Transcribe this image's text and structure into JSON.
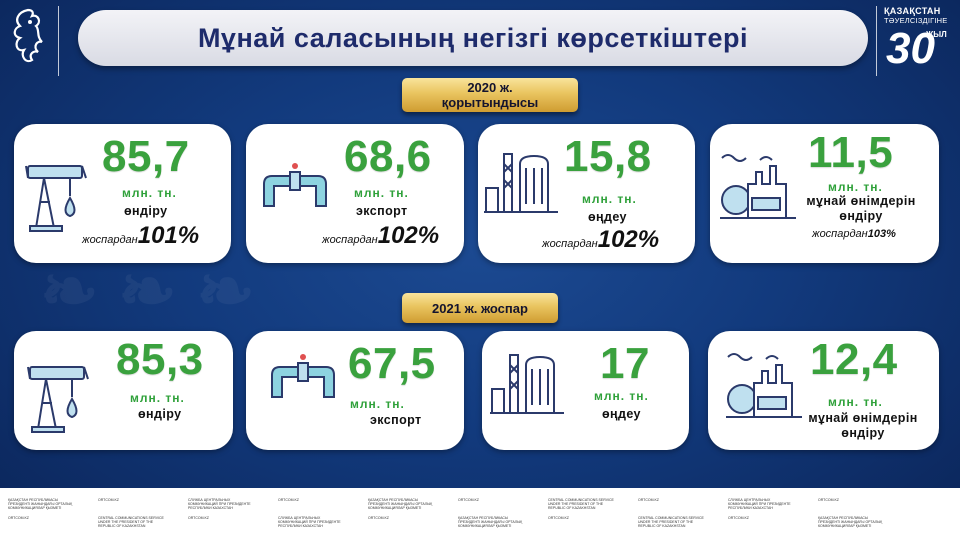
{
  "header": {
    "title": "Мұнай саласының негізгі көрсеткіштері",
    "logo_30": {
      "line1": "ҚАЗАҚСТАН",
      "line2": "ТӘУЕЛСІЗДІГІНЕ",
      "number": "30",
      "word": "ЖЫЛ"
    }
  },
  "sections": [
    {
      "label_line1": "2020 ж.",
      "label_line2": "қорытындысы",
      "cards": [
        {
          "icon": "oil-pump-icon",
          "value": "85,7",
          "unit": "млн. тн.",
          "label": "өндіру",
          "plan_prefix": "жоспардан",
          "plan_percent": "101%"
        },
        {
          "icon": "pipeline-icon",
          "value": "68,6",
          "unit": "млн. тн.",
          "label": "экспорт",
          "plan_prefix": "жоспардан",
          "plan_percent": "102%"
        },
        {
          "icon": "refinery-icon",
          "value": "15,8",
          "unit": "млн. тн.",
          "label": "өңдеу",
          "plan_prefix": "жоспардан",
          "plan_percent": "102%"
        },
        {
          "icon": "factory-icon",
          "value": "11,5",
          "unit": "млн. тн.",
          "label": "мұнай өнімдерін өндіру",
          "plan_prefix": "жоспардан",
          "plan_percent": "103%"
        }
      ]
    },
    {
      "label_line1": "2021 ж. жоспар",
      "cards": [
        {
          "icon": "oil-pump-icon",
          "value": "85,3",
          "unit": "млн. тн.",
          "label": "өндіру"
        },
        {
          "icon": "pipeline-icon",
          "value": "67,5",
          "unit": "млн. тн.",
          "label": "экспорт"
        },
        {
          "icon": "refinery-icon",
          "value": "17",
          "unit": "млн. тн.",
          "label": "өңдеу"
        },
        {
          "icon": "factory-icon",
          "value": "12,4",
          "unit": "млн. тн.",
          "label": "мұнай өнімдерін өндіру"
        }
      ]
    }
  ],
  "colors": {
    "accent_green": "#3aa13e",
    "background_blue": "#123a7d",
    "gold": "#e9c45f",
    "title_text": "#1e2b6b"
  },
  "footer": {
    "items": [
      "ҚАЗАҚСТАН РЕСПУБЛИКАСЫ ПРЕЗИДЕНТІ ЖАНЫНДАҒЫ ОРТАЛЫҚ КОММУНИКАЦИЯЛАР ҚЫЗМЕТІ",
      "ORTCOM.KZ",
      "СЛУЖБА ЦЕНТРАЛЬНЫХ КОММУНИКАЦИЙ ПРИ ПРЕЗИДЕНТЕ РЕСПУБЛИКИ КАЗАХСТАН",
      "CENTRAL COMMUNICATIONS SERVICE UNDER THE PRESIDENT OF THE REPUBLIC OF KAZAKHSTAN"
    ]
  }
}
